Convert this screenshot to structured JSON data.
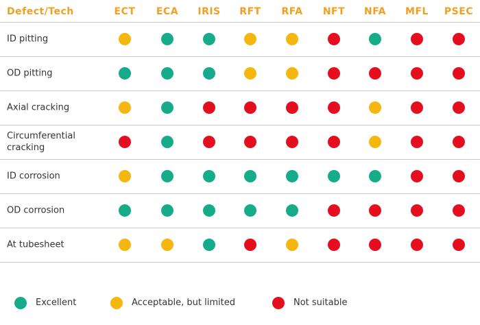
{
  "table": {
    "header": [
      "Defect/Tech",
      "ECT",
      "ECA",
      "IRIS",
      "RFT",
      "RFA",
      "NFT",
      "NFA",
      "MFL",
      "PSEC"
    ],
    "rows": [
      {
        "label": "ID pitting",
        "ratings": [
          "#f5b70f",
          "#17ac89",
          "#17ac89",
          "#f5b70f",
          "#f5b70f",
          "#e50e1f",
          "#17ac89",
          "#e50e1f",
          "#e50e1f"
        ]
      },
      {
        "label": "OD pitting",
        "ratings": [
          "#17ac89",
          "#17ac89",
          "#17ac89",
          "#f5b70f",
          "#f5b70f",
          "#e50e1f",
          "#e50e1f",
          "#e50e1f",
          "#e50e1f"
        ]
      },
      {
        "label": "Axial cracking",
        "ratings": [
          "#f5b70f",
          "#17ac89",
          "#e50e1f",
          "#e50e1f",
          "#e50e1f",
          "#e50e1f",
          "#f5b70f",
          "#e50e1f",
          "#e50e1f"
        ]
      },
      {
        "label": "Circumferential cracking",
        "ratings": [
          "#e50e1f",
          "#17ac89",
          "#e50e1f",
          "#e50e1f",
          "#e50e1f",
          "#e50e1f",
          "#f5b70f",
          "#e50e1f",
          "#e50e1f"
        ]
      },
      {
        "label": "ID corrosion",
        "ratings": [
          "#f5b70f",
          "#17ac89",
          "#17ac89",
          "#17ac89",
          "#17ac89",
          "#17ac89",
          "#17ac89",
          "#e50e1f",
          "#e50e1f"
        ]
      },
      {
        "label": "OD corrosion",
        "ratings": [
          "#17ac89",
          "#17ac89",
          "#17ac89",
          "#17ac89",
          "#17ac89",
          "#e50e1f",
          "#e50e1f",
          "#e50e1f",
          "#e50e1f"
        ]
      },
      {
        "label": "At tubesheet",
        "ratings": [
          "#f5b70f",
          "#f5b70f",
          "#17ac89",
          "#e50e1f",
          "#f5b70f",
          "#e50e1f",
          "#e50e1f",
          "#e50e1f",
          "#e50e1f"
        ]
      }
    ]
  },
  "legend": [
    {
      "label": "Excellent",
      "color": "#17ac89"
    },
    {
      "label": "Acceptable, but limited",
      "color": "#f5b70f"
    },
    {
      "label": "Not suitable",
      "color": "#e50e1f"
    }
  ]
}
